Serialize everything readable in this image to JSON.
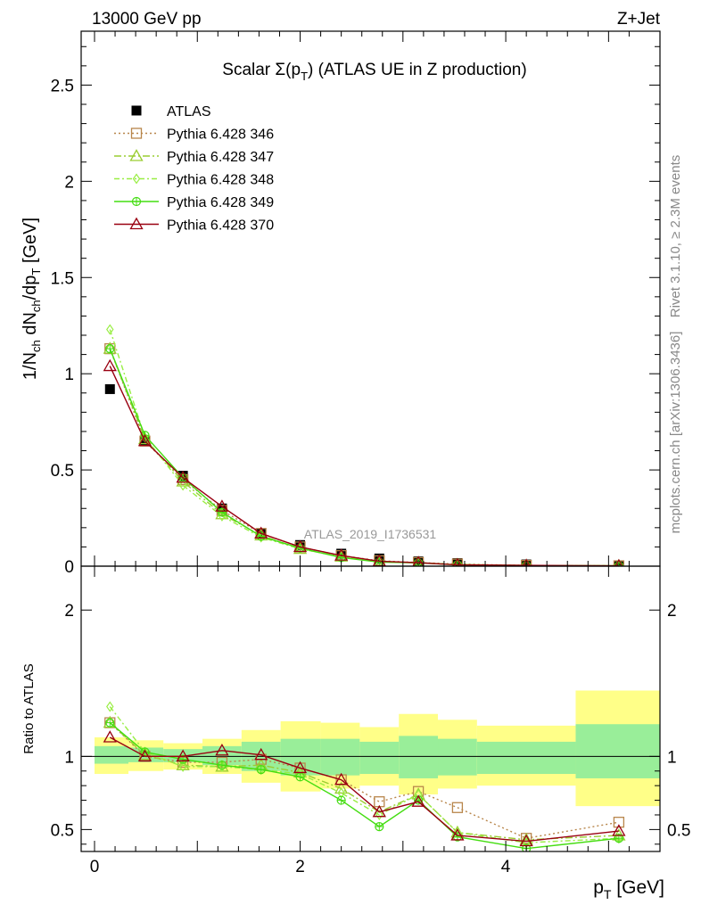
{
  "header": {
    "left": "13000 GeV pp",
    "right": "Z+Jet"
  },
  "side_labels": {
    "rivet": "Rivet 3.1.10, ≥ 2.3M events",
    "mcplots": "mcplots.cern.ch [arXiv:1306.3436]"
  },
  "watermark": "ATLAS_2019_I1736531",
  "chart_data": [
    {
      "type": "line",
      "panel": "main",
      "title": "Scalar Σ(p_T) (ATLAS UE in Z production)",
      "title_main": "Scalar Σ(p",
      "title_sub": "T",
      "title_tail": ") (ATLAS UE in Z production)",
      "xlabel": "p_T [GeV]",
      "ylabel": "1/N_ch dN_ch/dp_T [GeV]",
      "xlim": [
        -0.13,
        5.5
      ],
      "ylim": [
        0,
        2.78
      ],
      "yticks": [
        0,
        0.5,
        1,
        1.5,
        2,
        2.5
      ],
      "ytick_labels": [
        "0",
        "0.5",
        "1",
        "1.5",
        "2",
        "2.5"
      ],
      "x": [
        0.15,
        0.49,
        0.86,
        1.24,
        1.62,
        2.0,
        2.4,
        2.77,
        3.15,
        3.53,
        4.2,
        5.1
      ],
      "series": [
        {
          "name": "ATLAS",
          "color": "#000000",
          "marker": "square-filled",
          "dash": "",
          "values": [
            0.92,
            0.65,
            0.47,
            0.3,
            0.17,
            0.11,
            0.065,
            0.04,
            0.025,
            0.016,
            0.009,
            0.004
          ]
        },
        {
          "name": "Pythia 6.428 346",
          "color": "#b8864b",
          "marker": "square-open",
          "dash": "2,3",
          "values": [
            1.13,
            0.65,
            0.45,
            0.29,
            0.17,
            0.1,
            0.055,
            0.028,
            0.019,
            0.011,
            0.004,
            0.002
          ]
        },
        {
          "name": "Pythia 6.428 347",
          "color": "#9acd32",
          "marker": "triangle-open",
          "dash": "8,3,2,3",
          "values": [
            1.13,
            0.66,
            0.44,
            0.27,
            0.16,
            0.09,
            0.05,
            0.025,
            0.018,
            0.008,
            0.004,
            0.002
          ]
        },
        {
          "name": "Pythia 6.428 348",
          "color": "#99ee44",
          "marker": "diamond-open",
          "dash": "6,3,2,3",
          "values": [
            1.23,
            0.67,
            0.42,
            0.26,
            0.15,
            0.09,
            0.048,
            0.022,
            0.018,
            0.008,
            0.004,
            0.002
          ]
        },
        {
          "name": "Pythia 6.428 349",
          "color": "#44dd11",
          "marker": "circle-plus",
          "dash": "",
          "values": [
            1.13,
            0.68,
            0.46,
            0.28,
            0.155,
            0.094,
            0.045,
            0.021,
            0.017,
            0.007,
            0.003,
            0.002
          ]
        },
        {
          "name": "Pythia 6.428 370",
          "color": "#990011",
          "marker": "triangle-open",
          "dash": "",
          "values": [
            1.04,
            0.65,
            0.46,
            0.31,
            0.17,
            0.1,
            0.055,
            0.026,
            0.018,
            0.007,
            0.004,
            0.002
          ]
        }
      ],
      "legend_placement": "top-left"
    },
    {
      "type": "line",
      "panel": "ratio",
      "xlabel": "p_T [GeV]",
      "ylabel": "Ratio to ATLAS",
      "xlim": [
        -0.13,
        5.5
      ],
      "ylim": [
        0.35,
        2.3
      ],
      "yticks": [
        0.5,
        1,
        2
      ],
      "ytick_labels": [
        "0.5",
        "1",
        "2"
      ],
      "xticks": [
        0,
        2,
        4
      ],
      "xtick_labels": [
        "0",
        "2",
        "4"
      ],
      "bins": [
        [
          0.0,
          0.33
        ],
        [
          0.33,
          0.67
        ],
        [
          0.67,
          1.05
        ],
        [
          1.05,
          1.43
        ],
        [
          1.43,
          1.81
        ],
        [
          1.81,
          2.2
        ],
        [
          2.2,
          2.58
        ],
        [
          2.58,
          2.96
        ],
        [
          2.96,
          3.34
        ],
        [
          3.34,
          3.72
        ],
        [
          3.72,
          4.68
        ],
        [
          4.68,
          5.5
        ]
      ],
      "band_green": [
        [
          0.95,
          1.07
        ],
        [
          0.96,
          1.06
        ],
        [
          0.96,
          1.05
        ],
        [
          0.94,
          1.07
        ],
        [
          0.9,
          1.1
        ],
        [
          0.87,
          1.12
        ],
        [
          0.87,
          1.12
        ],
        [
          0.88,
          1.1
        ],
        [
          0.85,
          1.14
        ],
        [
          0.87,
          1.12
        ],
        [
          0.88,
          1.1
        ],
        [
          0.85,
          1.22
        ]
      ],
      "band_yellow": [
        [
          0.88,
          1.13
        ],
        [
          0.9,
          1.11
        ],
        [
          0.91,
          1.09
        ],
        [
          0.88,
          1.12
        ],
        [
          0.82,
          1.18
        ],
        [
          0.76,
          1.24
        ],
        [
          0.78,
          1.23
        ],
        [
          0.8,
          1.2
        ],
        [
          0.74,
          1.29
        ],
        [
          0.78,
          1.25
        ],
        [
          0.8,
          1.21
        ],
        [
          0.66,
          1.45
        ]
      ],
      "reference": 1,
      "series": [
        {
          "name": "Pythia 6.428 346",
          "color": "#b8864b",
          "marker": "square-open",
          "dash": "2,3",
          "values": [
            1.23,
            1.0,
            0.96,
            0.96,
            0.98,
            0.92,
            0.84,
            0.69,
            0.76,
            0.65,
            0.44,
            0.55
          ]
        },
        {
          "name": "Pythia 6.428 347",
          "color": "#9acd32",
          "marker": "triangle-open",
          "dash": "8,3,2,3",
          "values": [
            1.23,
            1.01,
            0.94,
            0.93,
            0.94,
            0.89,
            0.78,
            0.62,
            0.74,
            0.48,
            0.43,
            0.46
          ]
        },
        {
          "name": "Pythia 6.428 348",
          "color": "#99ee44",
          "marker": "diamond-open",
          "dash": "6,3,2,3",
          "values": [
            1.34,
            1.03,
            0.93,
            0.93,
            0.91,
            0.88,
            0.75,
            0.6,
            0.74,
            0.48,
            0.41,
            0.44
          ]
        },
        {
          "name": "Pythia 6.428 349",
          "color": "#44dd11",
          "marker": "circle-plus",
          "dash": "",
          "values": [
            1.23,
            1.03,
            0.98,
            0.94,
            0.91,
            0.86,
            0.7,
            0.52,
            0.7,
            0.45,
            0.37,
            0.44
          ]
        },
        {
          "name": "Pythia 6.428 370",
          "color": "#990011",
          "marker": "triangle-open",
          "dash": "",
          "values": [
            1.13,
            1.0,
            1.0,
            1.04,
            1.01,
            0.92,
            0.84,
            0.62,
            0.69,
            0.46,
            0.42,
            0.49
          ]
        }
      ]
    }
  ]
}
